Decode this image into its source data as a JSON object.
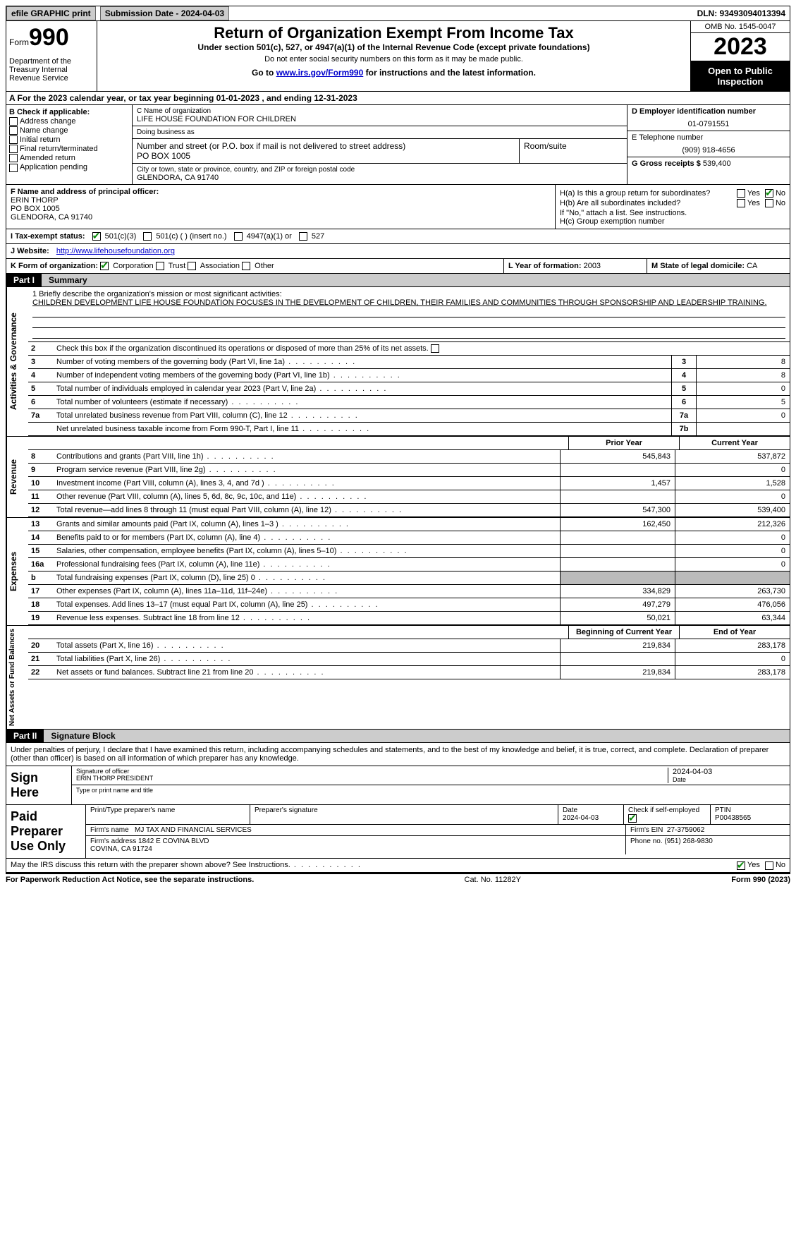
{
  "topbar": {
    "efile": "efile GRAPHIC print",
    "submission": "Submission Date - 2024-04-03",
    "dln": "DLN: 93493094013394"
  },
  "header": {
    "form_word": "Form",
    "form_num": "990",
    "title": "Return of Organization Exempt From Income Tax",
    "subtitle": "Under section 501(c), 527, or 4947(a)(1) of the Internal Revenue Code (except private foundations)",
    "note": "Do not enter social security numbers on this form as it may be made public.",
    "goto": "Go to ",
    "goto_link": "www.irs.gov/Form990",
    "goto_after": " for instructions and the latest information.",
    "dept": "Department of the Treasury\nInternal Revenue Service",
    "omb": "OMB No. 1545-0047",
    "year": "2023",
    "open": "Open to Public Inspection"
  },
  "rowA": "A For the 2023 calendar year, or tax year beginning 01-01-2023    , and ending 12-31-2023",
  "boxB": {
    "label": "B Check if applicable:",
    "opts": [
      "Address change",
      "Name change",
      "Initial return",
      "Final return/terminated",
      "Amended return",
      "Application pending"
    ]
  },
  "boxC": {
    "name_lbl": "C Name of organization",
    "name": "LIFE HOUSE FOUNDATION FOR CHILDREN",
    "dba_lbl": "Doing business as",
    "street_lbl": "Number and street (or P.O. box if mail is not delivered to street address)",
    "street": "PO BOX 1005",
    "room_lbl": "Room/suite",
    "city_lbl": "City or town, state or province, country, and ZIP or foreign postal code",
    "city": "GLENDORA, CA  91740"
  },
  "boxD": {
    "lbl": "D Employer identification number",
    "val": "01-0791551"
  },
  "boxE": {
    "lbl": "E Telephone number",
    "val": "(909) 918-4656"
  },
  "boxG": {
    "lbl": "G Gross receipts $",
    "val": "539,400"
  },
  "boxF": {
    "lbl": "F  Name and address of principal officer:",
    "name": "ERIN THORP",
    "addr1": "PO BOX 1005",
    "addr2": "GLENDORA, CA  91740"
  },
  "boxH": {
    "ha": "H(a)  Is this a group return for subordinates?",
    "hb": "H(b)  Are all subordinates included?",
    "hb_note": "If \"No,\" attach a list. See instructions.",
    "hc": "H(c)  Group exemption number",
    "yes": "Yes",
    "no": "No"
  },
  "rowI": {
    "lbl": "I    Tax-exempt status:",
    "o1": "501(c)(3)",
    "o2": "501(c) (  ) (insert no.)",
    "o3": "4947(a)(1) or",
    "o4": "527"
  },
  "rowJ": {
    "lbl": "J   Website:",
    "url": "http://www.lifehousefoundation.org"
  },
  "rowK": {
    "lbl": "K Form of organization:",
    "opts": [
      "Corporation",
      "Trust",
      "Association",
      "Other"
    ]
  },
  "rowL": {
    "lbl": "L Year of formation:",
    "val": "2003"
  },
  "rowM": {
    "lbl": "M State of legal domicile:",
    "val": "CA"
  },
  "part1": {
    "num": "Part I",
    "title": "Summary"
  },
  "mission": {
    "lbl": "1   Briefly describe the organization's mission or most significant activities:",
    "text": "CHILDREN DEVELOPMENT LIFE HOUSE FOUNDATION FOCUSES IN THE DEVELOPMENT OF CHILDREN, THEIR FAMILIES AND COMMUNITIES THROUGH SPONSORSHIP AND LEADERSHIP TRAINING."
  },
  "ag": {
    "tab": "Activities & Governance",
    "l2": "Check this box       if the organization discontinued its operations or disposed of more than 25% of its net assets.",
    "lines": [
      {
        "n": "3",
        "d": "Number of voting members of the governing body (Part VI, line 1a)",
        "r": "3",
        "v": "8"
      },
      {
        "n": "4",
        "d": "Number of independent voting members of the governing body (Part VI, line 1b)",
        "r": "4",
        "v": "8"
      },
      {
        "n": "5",
        "d": "Total number of individuals employed in calendar year 2023 (Part V, line 2a)",
        "r": "5",
        "v": "0"
      },
      {
        "n": "6",
        "d": "Total number of volunteers (estimate if necessary)",
        "r": "6",
        "v": "5"
      },
      {
        "n": "7a",
        "d": "Total unrelated business revenue from Part VIII, column (C), line 12",
        "r": "7a",
        "v": "0"
      },
      {
        "n": "",
        "d": "Net unrelated business taxable income from Form 990-T, Part I, line 11",
        "r": "7b",
        "v": ""
      }
    ]
  },
  "colhdr": {
    "prior": "Prior Year",
    "current": "Current Year"
  },
  "rev": {
    "tab": "Revenue",
    "lines": [
      {
        "n": "8",
        "d": "Contributions and grants (Part VIII, line 1h)",
        "c1": "545,843",
        "c2": "537,872"
      },
      {
        "n": "9",
        "d": "Program service revenue (Part VIII, line 2g)",
        "c1": "",
        "c2": "0"
      },
      {
        "n": "10",
        "d": "Investment income (Part VIII, column (A), lines 3, 4, and 7d )",
        "c1": "1,457",
        "c2": "1,528"
      },
      {
        "n": "11",
        "d": "Other revenue (Part VIII, column (A), lines 5, 6d, 8c, 9c, 10c, and 11e)",
        "c1": "",
        "c2": "0"
      },
      {
        "n": "12",
        "d": "Total revenue—add lines 8 through 11 (must equal Part VIII, column (A), line 12)",
        "c1": "547,300",
        "c2": "539,400"
      }
    ]
  },
  "exp": {
    "tab": "Expenses",
    "lines": [
      {
        "n": "13",
        "d": "Grants and similar amounts paid (Part IX, column (A), lines 1–3 )",
        "c1": "162,450",
        "c2": "212,326"
      },
      {
        "n": "14",
        "d": "Benefits paid to or for members (Part IX, column (A), line 4)",
        "c1": "",
        "c2": "0"
      },
      {
        "n": "15",
        "d": "Salaries, other compensation, employee benefits (Part IX, column (A), lines 5–10)",
        "c1": "",
        "c2": "0"
      },
      {
        "n": "16a",
        "d": "Professional fundraising fees (Part IX, column (A), line 11e)",
        "c1": "",
        "c2": "0"
      },
      {
        "n": "b",
        "d": "Total fundraising expenses (Part IX, column (D), line 25) 0",
        "c1": "grey",
        "c2": "grey"
      },
      {
        "n": "17",
        "d": "Other expenses (Part IX, column (A), lines 11a–11d, 11f–24e)",
        "c1": "334,829",
        "c2": "263,730"
      },
      {
        "n": "18",
        "d": "Total expenses. Add lines 13–17 (must equal Part IX, column (A), line 25)",
        "c1": "497,279",
        "c2": "476,056"
      },
      {
        "n": "19",
        "d": "Revenue less expenses. Subtract line 18 from line 12",
        "c1": "50,021",
        "c2": "63,344"
      }
    ]
  },
  "na": {
    "tab": "Net Assets or Fund Balances",
    "hdr1": "Beginning of Current Year",
    "hdr2": "End of Year",
    "lines": [
      {
        "n": "20",
        "d": "Total assets (Part X, line 16)",
        "c1": "219,834",
        "c2": "283,178"
      },
      {
        "n": "21",
        "d": "Total liabilities (Part X, line 26)",
        "c1": "",
        "c2": "0"
      },
      {
        "n": "22",
        "d": "Net assets or fund balances. Subtract line 21 from line 20",
        "c1": "219,834",
        "c2": "283,178"
      }
    ]
  },
  "part2": {
    "num": "Part II",
    "title": "Signature Block"
  },
  "sig": {
    "decl": "Under penalties of perjury, I declare that I have examined this return, including accompanying schedules and statements, and to the best of my knowledge and belief, it is true, correct, and complete. Declaration of preparer (other than officer) is based on all information of which preparer has any knowledge.",
    "sign_here": "Sign Here",
    "sig_officer": "Signature of officer",
    "date": "2024-04-03",
    "date_lbl": "Date",
    "officer": "ERIN THORP  PRESIDENT",
    "type_lbl": "Type or print name and title",
    "paid": "Paid Preparer Use Only",
    "p_name_lbl": "Print/Type preparer's name",
    "p_sig_lbl": "Preparer's signature",
    "p_date": "2024-04-03",
    "p_check": "Check         if self-employed",
    "ptin_lbl": "PTIN",
    "ptin": "P00438565",
    "firm_name_lbl": "Firm's name",
    "firm_name": "MJ TAX AND FINANCIAL SERVICES",
    "firm_ein_lbl": "Firm's EIN",
    "firm_ein": "27-3759062",
    "firm_addr_lbl": "Firm's address",
    "firm_addr": "1842 E COVINA BLVD",
    "firm_city": "COVINA, CA  91724",
    "phone_lbl": "Phone no.",
    "phone": "(951) 268-9830"
  },
  "discuss": "May the IRS discuss this return with the preparer shown above? See Instructions.",
  "footer": {
    "left": "For Paperwork Reduction Act Notice, see the separate instructions.",
    "mid": "Cat. No. 11282Y",
    "right": "Form 990 (2023)"
  }
}
